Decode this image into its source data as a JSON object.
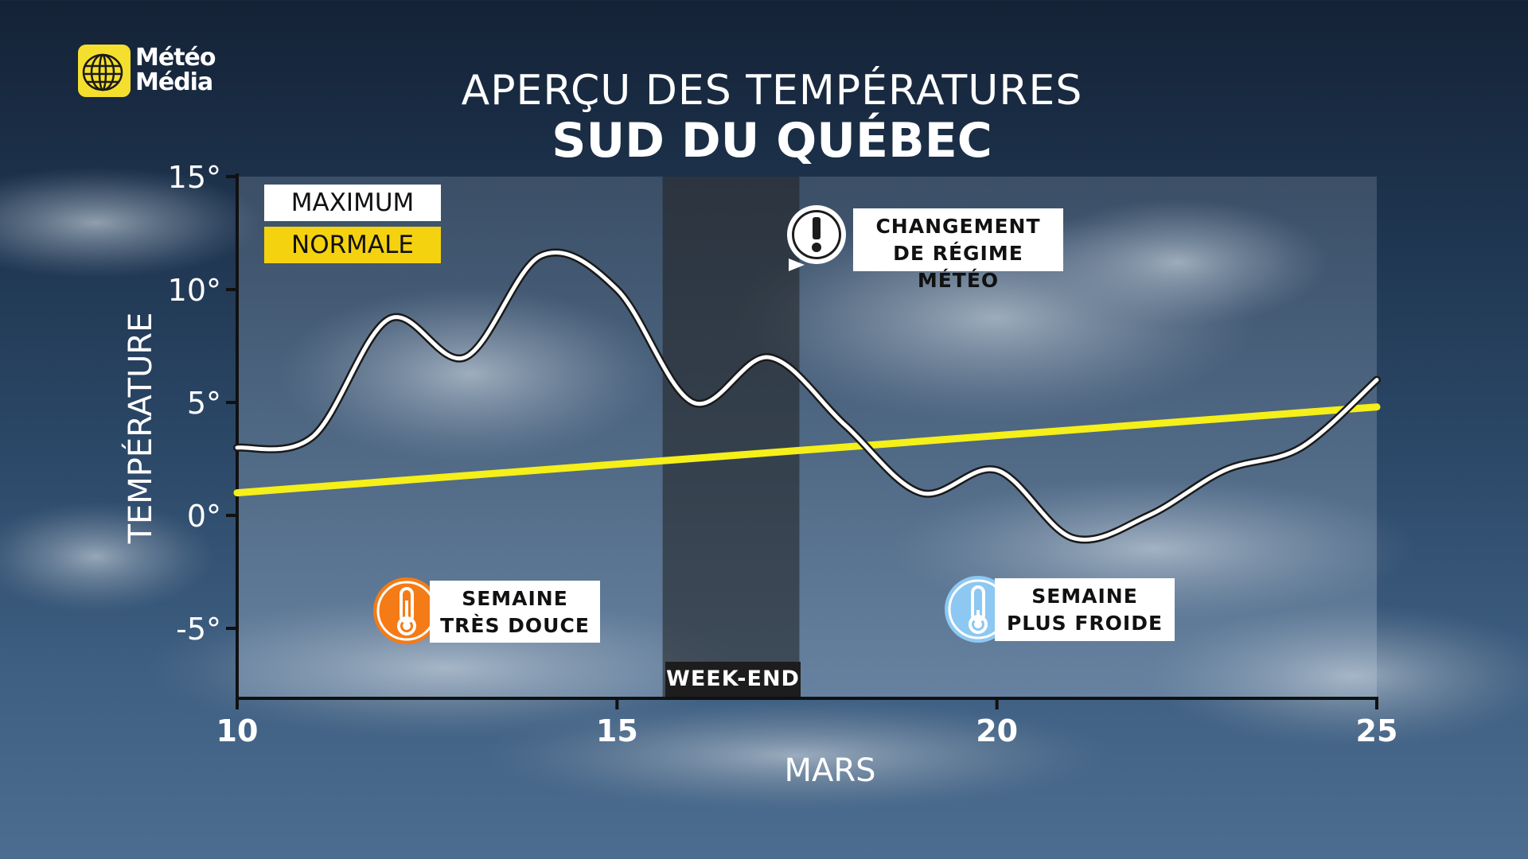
{
  "brand": {
    "line1": "Météo",
    "line2": "Média",
    "logo_color": "#f5df2e"
  },
  "title": {
    "line1": "APERÇU DES TEMPÉRATURES",
    "line2": "SUD DU QUÉBEC"
  },
  "legend": {
    "max_label": "MAXIMUM",
    "normal_label": "NORMALE",
    "max_color": "#ffffff",
    "normal_color": "#f5d20f"
  },
  "callouts": {
    "change": {
      "line1": "CHANGEMENT",
      "line2": "DE RÉGIME MÉTÉO",
      "icon": "exclamation-icon"
    },
    "mild_week": {
      "line1": "SEMAINE",
      "line2": "TRÈS DOUCE",
      "icon": "thermometer-warm-icon",
      "icon_color": "#f47b16"
    },
    "cold_week": {
      "line1": "SEMAINE",
      "line2": "PLUS FROIDE",
      "icon": "thermometer-cold-icon",
      "icon_color": "#8cc8f2"
    },
    "weekend": "WEEK-END"
  },
  "chart_data": {
    "type": "line",
    "title": "APERÇU DES TEMPÉRATURES SUD DU QUÉBEC",
    "xlabel": "MARS",
    "ylabel": "TEMPÉRATURE",
    "xlim": [
      10,
      25
    ],
    "ylim": [
      -8,
      15
    ],
    "x_ticks": [
      10,
      15,
      20,
      25
    ],
    "y_ticks": [
      15,
      10,
      5,
      0,
      -5
    ],
    "y_tick_labels": [
      "15°",
      "10°",
      "5°",
      "0°",
      "-5°"
    ],
    "weekend_range": [
      15.6,
      17.4
    ],
    "series": [
      {
        "name": "MAXIMUM",
        "color": "#ffffff",
        "x": [
          10,
          11,
          12,
          13,
          14,
          15,
          16,
          17,
          18,
          19,
          20,
          21,
          22,
          23,
          24,
          25
        ],
        "values": [
          3,
          3.5,
          8.7,
          7,
          11.5,
          10,
          5,
          7,
          4,
          1,
          2,
          -1,
          0,
          2,
          3,
          6
        ]
      },
      {
        "name": "NORMALE",
        "color": "#f5ef1a",
        "x": [
          10,
          25
        ],
        "values": [
          1,
          4.8
        ]
      }
    ]
  }
}
